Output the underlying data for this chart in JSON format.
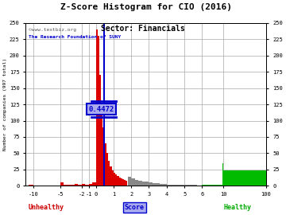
{
  "title": "Z-Score Histogram for CIO (2016)",
  "subtitle": "Sector: Financials",
  "watermark1": "©www.textbiz.org",
  "watermark2": "The Research Foundation of SUNY",
  "cio_zscore": 0.4472,
  "annotation_label": "0.4472",
  "ylim": [
    0,
    250
  ],
  "bg_color": "#ffffff",
  "plot_bg_color": "#ffffff",
  "grid_color": "#aaaaaa",
  "bar_red_color": "#dd0000",
  "bar_gray_color": "#888888",
  "bar_green_color": "#00bb00",
  "vline_color": "#0000cc",
  "annotation_box_facecolor": "#aaaaee",
  "annotation_text_color": "#0000cc",
  "unhealthy_color": "#cc0000",
  "healthy_color": "#00aa00",
  "score_color": "#0000cc",
  "score_box_color": "#aaaaee",
  "title_color": "#000000",
  "watermark1_color": "#555555",
  "watermark2_color": "#0000cc",
  "red_bars": [
    [
      -11.0,
      1
    ],
    [
      -10.0,
      0
    ],
    [
      -9.0,
      0
    ],
    [
      -8.0,
      0
    ],
    [
      -7.0,
      0
    ],
    [
      -6.0,
      0
    ],
    [
      -5.0,
      5
    ],
    [
      -4.5,
      1
    ],
    [
      -4.0,
      1
    ],
    [
      -3.0,
      3
    ],
    [
      -2.5,
      2
    ],
    [
      -2.0,
      3
    ],
    [
      -1.5,
      2
    ],
    [
      -1.0,
      3
    ],
    [
      -0.5,
      5
    ],
    [
      0.0,
      240
    ],
    [
      0.1,
      230
    ],
    [
      0.2,
      170
    ],
    [
      0.3,
      120
    ],
    [
      0.4,
      90
    ],
    [
      0.5,
      65
    ],
    [
      0.6,
      50
    ],
    [
      0.7,
      38
    ],
    [
      0.8,
      30
    ],
    [
      0.9,
      24
    ],
    [
      1.0,
      20
    ],
    [
      1.1,
      17
    ],
    [
      1.2,
      15
    ],
    [
      1.3,
      13
    ],
    [
      1.4,
      11
    ],
    [
      1.5,
      10
    ],
    [
      1.6,
      9
    ],
    [
      1.7,
      8
    ]
  ],
  "gray_bars": [
    [
      1.8,
      14
    ],
    [
      2.0,
      11
    ],
    [
      2.2,
      9
    ],
    [
      2.4,
      8
    ],
    [
      2.6,
      7
    ],
    [
      2.8,
      6
    ],
    [
      3.0,
      5
    ],
    [
      3.2,
      4
    ],
    [
      3.4,
      4
    ],
    [
      3.6,
      3
    ],
    [
      3.8,
      3
    ],
    [
      4.0,
      2
    ],
    [
      4.2,
      2
    ],
    [
      4.4,
      2
    ],
    [
      4.6,
      2
    ],
    [
      4.8,
      1
    ],
    [
      5.0,
      1
    ],
    [
      5.2,
      1
    ],
    [
      5.4,
      1
    ],
    [
      5.6,
      1
    ]
  ],
  "green_bars": [
    [
      6.0,
      2
    ],
    [
      6.2,
      1
    ],
    [
      6.4,
      1
    ],
    [
      9.8,
      35
    ],
    [
      10.0,
      23
    ],
    [
      99.8,
      12
    ],
    [
      100.0,
      8
    ]
  ],
  "xticks_real": [
    -10,
    -5,
    -2,
    -1,
    0,
    1,
    2,
    3,
    4,
    5,
    6,
    10,
    100
  ],
  "xtick_labels": [
    "-10",
    "-5",
    "-2",
    "-1",
    "0",
    "1",
    "2",
    "3",
    "4",
    "5",
    "6",
    "10",
    "100"
  ],
  "yticks": [
    0,
    25,
    50,
    75,
    100,
    125,
    150,
    175,
    200,
    225,
    250
  ]
}
